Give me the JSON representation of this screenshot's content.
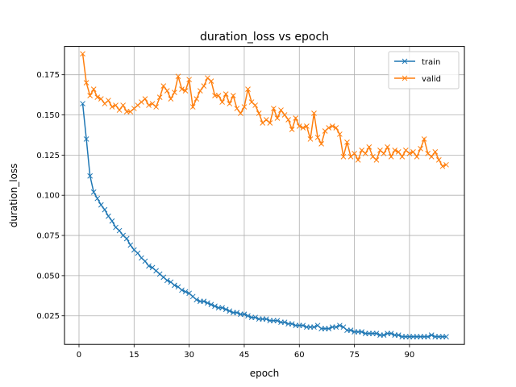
{
  "chart_data": {
    "type": "line",
    "title": "duration_loss vs epoch",
    "xlabel": "epoch",
    "ylabel": "duration_loss",
    "xlim": [
      -3.95,
      104.95
    ],
    "ylim": [
      0.0072,
      0.1926
    ],
    "xticks": [
      0,
      15,
      30,
      45,
      60,
      75,
      90
    ],
    "yticks": [
      0.025,
      0.05,
      0.075,
      0.1,
      0.125,
      0.15,
      0.175
    ],
    "xtick_labels": [
      "0",
      "15",
      "30",
      "45",
      "60",
      "75",
      "90"
    ],
    "ytick_labels": [
      "0.025",
      "0.050",
      "0.075",
      "0.100",
      "0.125",
      "0.150",
      "0.175"
    ],
    "grid": true,
    "legend_position": "top-right",
    "marker": "x",
    "series": [
      {
        "name": "train",
        "color": "#1f77b4",
        "x": [
          1,
          2,
          3,
          4,
          5,
          6,
          7,
          8,
          9,
          10,
          11,
          12,
          13,
          14,
          15,
          16,
          17,
          18,
          19,
          20,
          21,
          22,
          23,
          24,
          25,
          26,
          27,
          28,
          29,
          30,
          31,
          32,
          33,
          34,
          35,
          36,
          37,
          38,
          39,
          40,
          41,
          42,
          43,
          44,
          45,
          46,
          47,
          48,
          49,
          50,
          51,
          52,
          53,
          54,
          55,
          56,
          57,
          58,
          59,
          60,
          61,
          62,
          63,
          64,
          65,
          66,
          67,
          68,
          69,
          70,
          71,
          72,
          73,
          74,
          75,
          76,
          77,
          78,
          79,
          80,
          81,
          82,
          83,
          84,
          85,
          86,
          87,
          88,
          89,
          90,
          91,
          92,
          93,
          94,
          95,
          96,
          97,
          98,
          99,
          100
        ],
        "values": [
          0.157,
          0.135,
          0.112,
          0.102,
          0.098,
          0.094,
          0.091,
          0.087,
          0.084,
          0.08,
          0.078,
          0.075,
          0.073,
          0.069,
          0.066,
          0.064,
          0.061,
          0.059,
          0.056,
          0.055,
          0.053,
          0.051,
          0.049,
          0.047,
          0.046,
          0.044,
          0.043,
          0.041,
          0.04,
          0.039,
          0.037,
          0.035,
          0.034,
          0.034,
          0.033,
          0.032,
          0.031,
          0.03,
          0.03,
          0.029,
          0.028,
          0.027,
          0.027,
          0.026,
          0.026,
          0.025,
          0.024,
          0.024,
          0.023,
          0.023,
          0.023,
          0.022,
          0.022,
          0.022,
          0.021,
          0.021,
          0.02,
          0.02,
          0.019,
          0.019,
          0.019,
          0.018,
          0.018,
          0.018,
          0.019,
          0.017,
          0.017,
          0.017,
          0.018,
          0.018,
          0.019,
          0.018,
          0.016,
          0.016,
          0.015,
          0.015,
          0.015,
          0.014,
          0.014,
          0.014,
          0.014,
          0.013,
          0.013,
          0.014,
          0.014,
          0.013,
          0.013,
          0.012,
          0.012,
          0.012,
          0.012,
          0.012,
          0.012,
          0.012,
          0.012,
          0.013,
          0.012,
          0.012,
          0.012,
          0.012
        ]
      },
      {
        "name": "valid",
        "color": "#ff7f0e",
        "x": [
          1,
          2,
          3,
          4,
          5,
          6,
          7,
          8,
          9,
          10,
          11,
          12,
          13,
          14,
          15,
          16,
          17,
          18,
          19,
          20,
          21,
          22,
          23,
          24,
          25,
          26,
          27,
          28,
          29,
          30,
          31,
          32,
          33,
          34,
          35,
          36,
          37,
          38,
          39,
          40,
          41,
          42,
          43,
          44,
          45,
          46,
          47,
          48,
          49,
          50,
          51,
          52,
          53,
          54,
          55,
          56,
          57,
          58,
          59,
          60,
          61,
          62,
          63,
          64,
          65,
          66,
          67,
          68,
          69,
          70,
          71,
          72,
          73,
          74,
          75,
          76,
          77,
          78,
          79,
          80,
          81,
          82,
          83,
          84,
          85,
          86,
          87,
          88,
          89,
          90,
          91,
          92,
          93,
          94,
          95,
          96,
          97,
          98,
          99,
          100
        ],
        "values": [
          0.188,
          0.17,
          0.162,
          0.166,
          0.161,
          0.16,
          0.157,
          0.159,
          0.155,
          0.156,
          0.153,
          0.156,
          0.152,
          0.152,
          0.154,
          0.156,
          0.158,
          0.16,
          0.156,
          0.157,
          0.155,
          0.161,
          0.168,
          0.165,
          0.16,
          0.164,
          0.174,
          0.166,
          0.165,
          0.172,
          0.155,
          0.16,
          0.165,
          0.168,
          0.173,
          0.171,
          0.162,
          0.162,
          0.158,
          0.163,
          0.157,
          0.162,
          0.154,
          0.151,
          0.155,
          0.166,
          0.158,
          0.156,
          0.151,
          0.145,
          0.147,
          0.145,
          0.154,
          0.148,
          0.153,
          0.15,
          0.147,
          0.141,
          0.148,
          0.143,
          0.142,
          0.143,
          0.135,
          0.151,
          0.136,
          0.132,
          0.14,
          0.142,
          0.143,
          0.142,
          0.138,
          0.124,
          0.133,
          0.124,
          0.126,
          0.122,
          0.128,
          0.126,
          0.13,
          0.124,
          0.122,
          0.128,
          0.126,
          0.13,
          0.124,
          0.128,
          0.127,
          0.124,
          0.128,
          0.126,
          0.127,
          0.124,
          0.129,
          0.135,
          0.126,
          0.124,
          0.127,
          0.122,
          0.118,
          0.119
        ]
      }
    ]
  }
}
